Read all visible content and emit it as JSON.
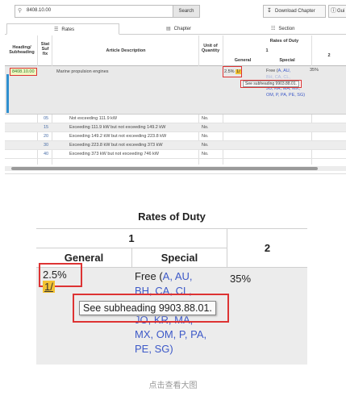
{
  "toolbar": {
    "search_value": "8408.10.00",
    "search_button": "Search",
    "download_button": "Download Chapter",
    "guide_button": "Gui"
  },
  "tabs": [
    {
      "label": "Rates",
      "icon": "rates-icon"
    },
    {
      "label": "Chapter",
      "icon": "chapter-icon"
    },
    {
      "label": "Section",
      "icon": "section-icon"
    }
  ],
  "table_header": {
    "heading": "Heading/ Subheading",
    "stat_suffix": "Stat Suf fix",
    "article": "Article Description",
    "unit": "Unit of Quantity",
    "rates": "Rates of Duty",
    "col1": "1",
    "general": "General",
    "special": "Special",
    "col2": "2"
  },
  "main_row": {
    "heading": "8408.10.00",
    "description": "Marine propulsion engines",
    "general_rate": "2.5%",
    "footnote": "1/",
    "special_prefix": "Free (",
    "special_codes_1": "A, AU,",
    "special_codes_hidden": "BH, CA, CL,",
    "special_codes_2": "JO, KR, MA, MX, OM, P, PA, PE, SG)",
    "tooltip": "See subheading 9903.88.01.",
    "col2_rate": "35%"
  },
  "rows": [
    {
      "suffix": "05",
      "description": "Not exceeding 111.9 kW",
      "unit": "No."
    },
    {
      "suffix": "15",
      "description": "Exceeding 111.9 kW but not exceeding 149.2 kW",
      "unit": "No."
    },
    {
      "suffix": "20",
      "description": "Exceeding 149.2 kW but not exceeding 223.8 kW",
      "unit": "No."
    },
    {
      "suffix": "30",
      "description": "Exceeding 223.8 kW but not exceeding 373 kW",
      "unit": "No."
    },
    {
      "suffix": "40",
      "description": "Exceeding 373 kW but not exceeding 746 kW",
      "unit": "No."
    }
  ],
  "zoom": {
    "rates": "Rates of Duty",
    "col1": "1",
    "general": "General",
    "special": "Special",
    "col2": "2",
    "general_rate": "2.5%",
    "footnote": "1/",
    "special_line1_prefix": "Free (",
    "special_line1_codes": "A, AU,",
    "special_line2": "BH, CA, CL,",
    "special_line3": "JO, KR, MA,",
    "special_line4": "MX, OM, P, PA,",
    "special_line5": "PE, SG)",
    "tooltip": "See subheading 9903.88.01.",
    "col2_rate": "35%"
  },
  "caption": "点击查看大图"
}
